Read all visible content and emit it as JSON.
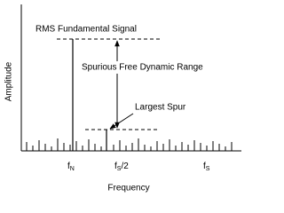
{
  "diagram": {
    "labels": {
      "fundamental": "RMS Fundamental Signal",
      "sfdr": "Spurious Free Dynamic Range",
      "spur": "Largest Spur"
    },
    "axes": {
      "y_label": "Amplitude",
      "x_label": "Frequency"
    },
    "x_ticks": [
      {
        "base": "f",
        "sub": "N",
        "suffix": ""
      },
      {
        "base": "f",
        "sub": "S",
        "suffix": "/2"
      },
      {
        "base": "f",
        "sub": "S",
        "suffix": ""
      }
    ]
  }
}
